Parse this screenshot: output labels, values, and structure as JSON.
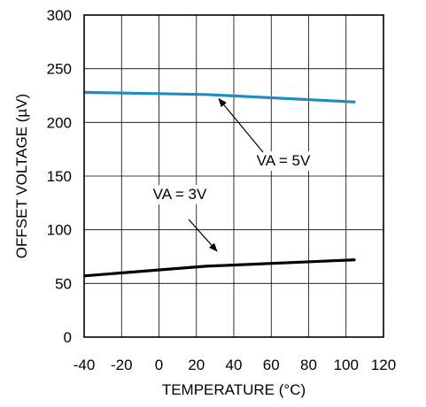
{
  "chart_data": {
    "type": "line",
    "title": "",
    "xlabel": "TEMPERATURE (°C)",
    "ylabel": "OFFSET VOLTAGE (µV)",
    "xlim": [
      -40,
      120
    ],
    "ylim": [
      0,
      300
    ],
    "xticks": [
      -40,
      -20,
      0,
      20,
      40,
      60,
      80,
      100,
      120
    ],
    "yticks": [
      0,
      50,
      100,
      150,
      200,
      250,
      300
    ],
    "grid": true,
    "series": [
      {
        "name": "VA = 5V",
        "color": "#1e8bc3",
        "x": [
          -40,
          25,
          105
        ],
        "y": [
          228,
          226,
          219
        ]
      },
      {
        "name": "VA = 3V",
        "color": "#000000",
        "x": [
          -40,
          25,
          105
        ],
        "y": [
          57,
          66,
          72
        ]
      }
    ],
    "annotations": [
      {
        "text": "VA = 5V",
        "series": 0,
        "arrow_to": {
          "x": 32,
          "y": 222
        }
      },
      {
        "text": "VA = 3V",
        "series": 1,
        "arrow_to": {
          "x": 31,
          "y": 80
        }
      }
    ]
  }
}
